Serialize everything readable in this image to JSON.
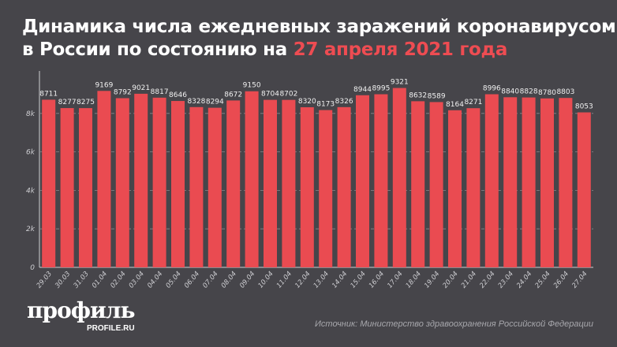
{
  "title": {
    "main": "Динамика числа ежедневных заражений коронавирусом в России по состоянию на",
    "highlight": "27 апреля 2021 года"
  },
  "colors": {
    "background": "#46454a",
    "bar": "#ea4b51",
    "highlight": "#ee4c52"
  },
  "chart_data": {
    "type": "bar",
    "categories": [
      "29.03",
      "30.03",
      "31.03",
      "01.04",
      "02.04",
      "03.04",
      "04.04",
      "05.04",
      "06.04",
      "07.04",
      "08.04",
      "09.04",
      "10.04",
      "11.04",
      "12.04",
      "13.04",
      "14.04",
      "15.04",
      "16.04",
      "17.04",
      "18.04",
      "19.04",
      "20.04",
      "21.04",
      "22.04",
      "23.04",
      "24.04",
      "25.04",
      "26.04",
      "27.04"
    ],
    "values": [
      8711,
      8277,
      8275,
      9169,
      8792,
      9021,
      8817,
      8646,
      8328,
      8294,
      8672,
      9150,
      8704,
      8702,
      8320,
      8173,
      8326,
      8944,
      8995,
      9321,
      8632,
      8589,
      8164,
      8271,
      8996,
      8840,
      8828,
      8780,
      8803,
      8053
    ],
    "yticks": [
      0,
      2000,
      4000,
      6000,
      8000
    ],
    "ytick_labels": [
      "0",
      "2k",
      "4k",
      "6k",
      "8k"
    ],
    "ylim": [
      0,
      10000
    ],
    "grid": "horizontal dashed",
    "data_labels": true
  },
  "footer": {
    "logo": "профиль",
    "logo_sub": "PROFILE.RU",
    "source": "Источник: Министерство здравоохранения Российской Федерации"
  }
}
